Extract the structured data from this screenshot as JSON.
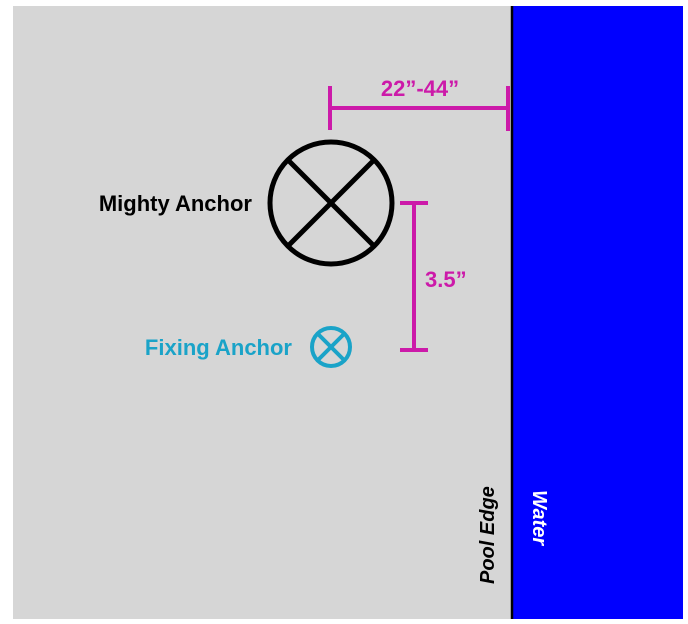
{
  "labels": {
    "horizontal_dimension": "22”-44”",
    "vertical_dimension": "3.5”",
    "mighty_anchor": "Mighty Anchor",
    "fixing_anchor": "Fixing Anchor",
    "pool_edge": "Pool Edge",
    "water": "Water"
  },
  "colors": {
    "deck": "#d6d6d6",
    "water": "#0000ff",
    "dimension": "#cc1aa9",
    "fixing_anchor": "#1aa3c8",
    "mighty_anchor": "#000000",
    "pool_edge_line": "#000000",
    "water_text": "#ffffff"
  },
  "icons": {
    "mighty_anchor": "circle-x-icon",
    "fixing_anchor": "circle-x-icon"
  }
}
